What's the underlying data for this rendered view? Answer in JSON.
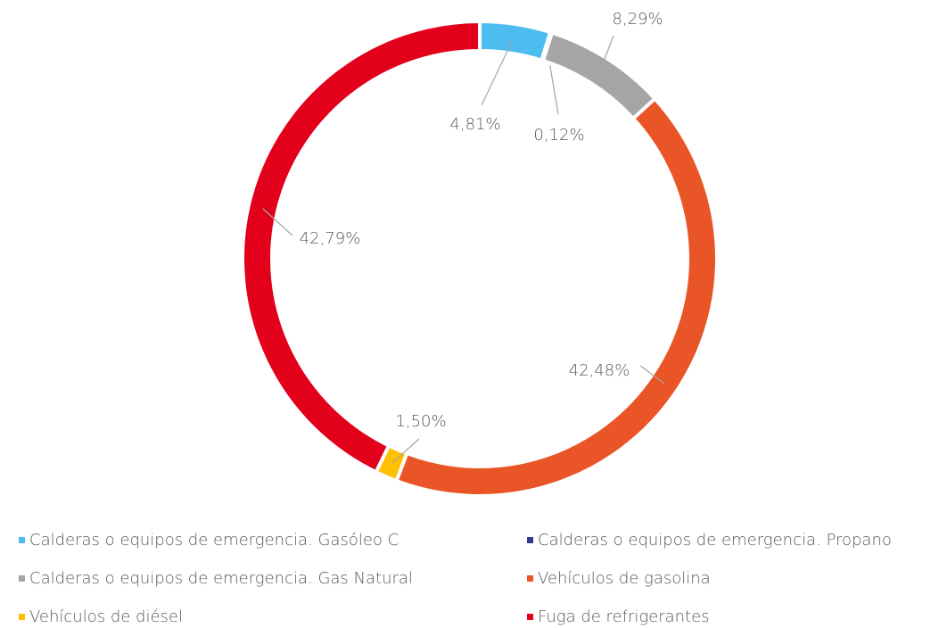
{
  "chart_data": {
    "type": "donut",
    "categories": [
      "Calderas o equipos de emergencia. Gasóleo C",
      "Calderas o equipos de emergencia. Propano",
      "Calderas o equipos de emergencia. Gas Natural",
      "Vehículos de gasolina",
      "Vehículos de diésel",
      "Fuga de refrigerantes"
    ],
    "values": [
      4.81,
      0.12,
      8.29,
      42.48,
      1.5,
      42.79
    ],
    "value_labels": [
      "4,81%",
      "0,12%",
      "8,29%",
      "42,48%",
      "1,50%",
      "42,79%"
    ],
    "colors": [
      "#4dbdf0",
      "#2e3a8c",
      "#a5a5a5",
      "#e95526",
      "#ffc000",
      "#e3001b"
    ]
  }
}
